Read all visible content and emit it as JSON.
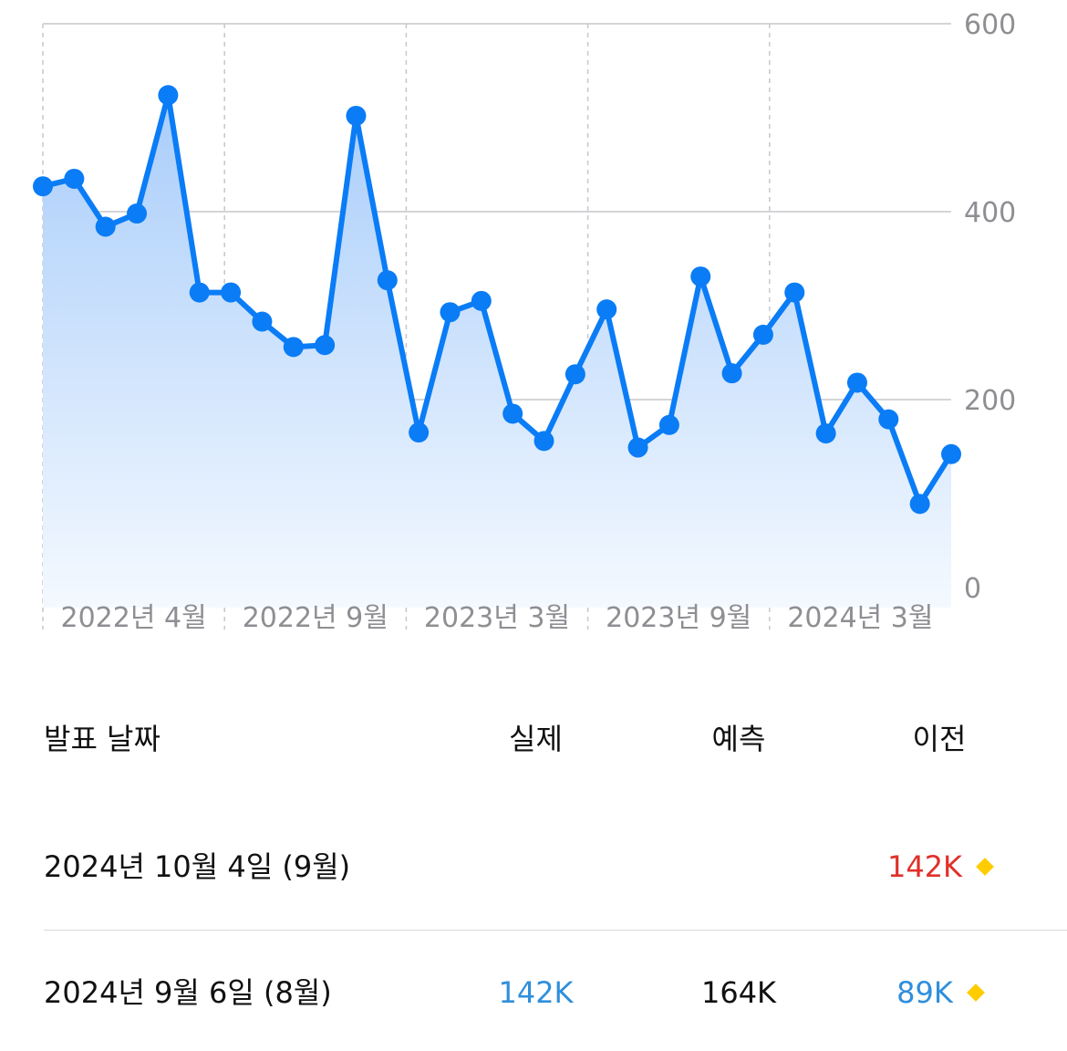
{
  "chart_data": {
    "type": "area",
    "y_axis": {
      "ticks": [
        "600",
        "400",
        "200",
        "0"
      ],
      "ylim": [
        0,
        600
      ],
      "position": "right"
    },
    "x_tick_labels": [
      "2022년 4월",
      "2022년 9월",
      "2023년 3월",
      "2023년 9월",
      "2024년 3월"
    ],
    "grid": true,
    "series": [
      {
        "values": [
          427,
          435,
          384,
          398,
          524,
          314,
          314,
          283,
          256,
          258,
          502,
          327,
          165,
          293,
          305,
          185,
          156,
          227,
          296,
          149,
          173,
          331,
          228,
          269,
          314,
          164,
          218,
          179,
          89,
          142
        ]
      }
    ],
    "colors": {
      "line": "#0a7cf6",
      "fill_top": "#a9cdfa",
      "fill_bottom": "#f4f9ff",
      "grid": "#c7c7cc"
    }
  },
  "table": {
    "headers": {
      "date": "발표 날짜",
      "actual": "실제",
      "forecast": "예측",
      "previous": "이전"
    },
    "rows": [
      {
        "date": "2024년 10월 4일 (9월)",
        "actual": "",
        "forecast": "",
        "previous": "142K",
        "previous_color": "#e0302a"
      },
      {
        "date": "2024년 9월 6일 (8월)",
        "actual": "142K",
        "actual_color": "#2f8fdc",
        "forecast": "164K",
        "previous": "89K",
        "previous_color": "#2f8fdc"
      }
    ]
  }
}
